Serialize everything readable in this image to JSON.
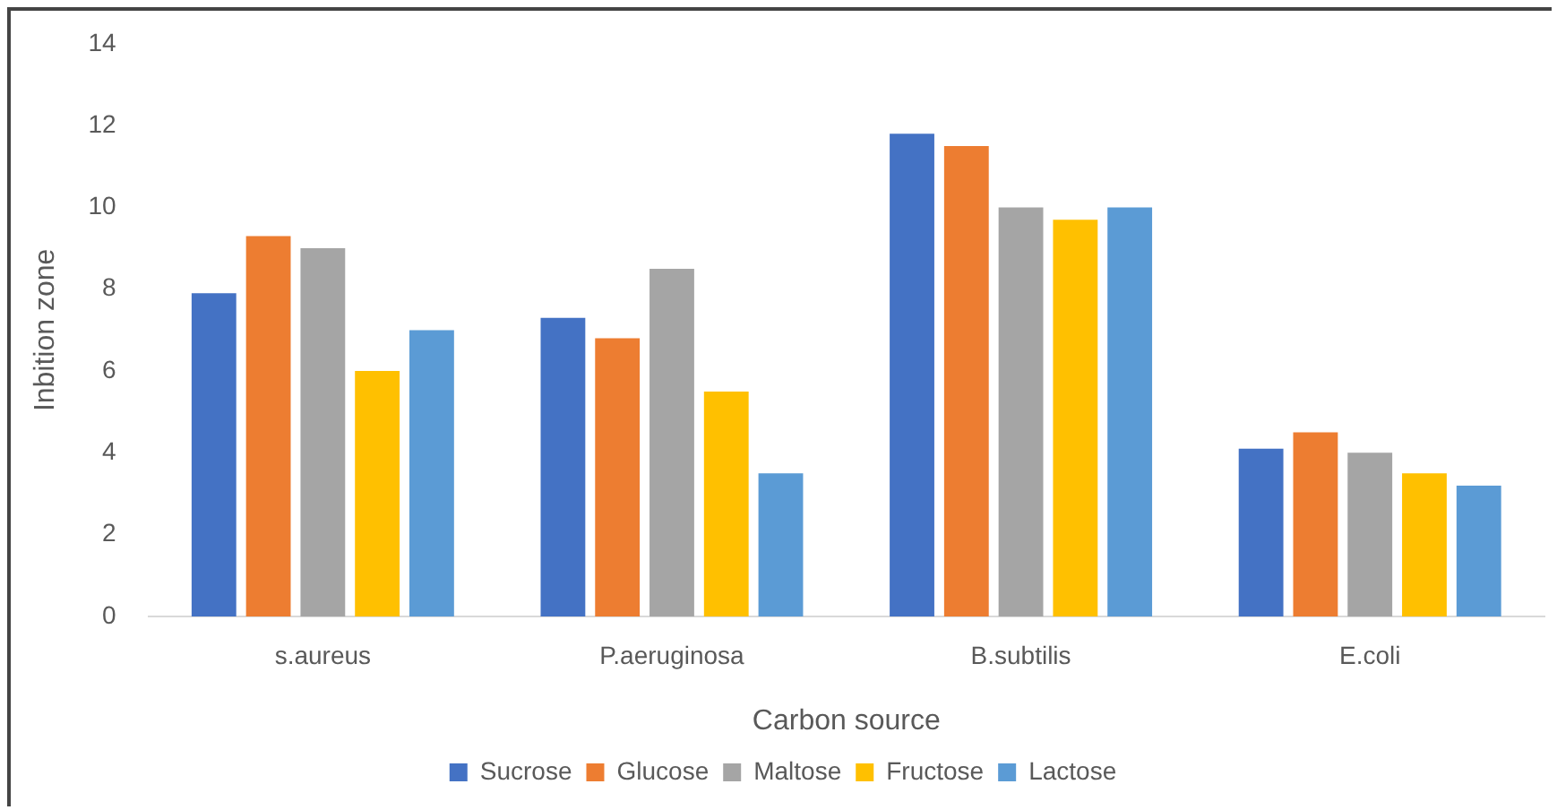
{
  "chart_data": {
    "type": "bar",
    "xlabel": "Carbon source",
    "ylabel": "Inbition zone",
    "categories": [
      "s.aureus",
      "P.aeruginosa",
      "B.subtilis",
      "E.coli"
    ],
    "series": [
      {
        "name": "Sucrose",
        "color": "#4472c4",
        "values": [
          7.9,
          7.3,
          11.8,
          4.1
        ]
      },
      {
        "name": "Glucose",
        "color": "#ed7d31",
        "values": [
          9.3,
          6.8,
          11.5,
          4.5
        ]
      },
      {
        "name": "Maltose",
        "color": "#a5a5a5",
        "values": [
          9.0,
          8.5,
          10.0,
          4.0
        ]
      },
      {
        "name": "Fructose",
        "color": "#ffc000",
        "values": [
          6.0,
          5.5,
          9.7,
          3.5
        ]
      },
      {
        "name": "Lactose",
        "color": "#5b9bd5",
        "values": [
          7.0,
          3.5,
          10.0,
          3.2
        ]
      }
    ],
    "ylim": [
      0,
      14
    ],
    "yticks": [
      0,
      2,
      4,
      6,
      8,
      10,
      12,
      14
    ],
    "grid": false,
    "legend": "bottom"
  }
}
